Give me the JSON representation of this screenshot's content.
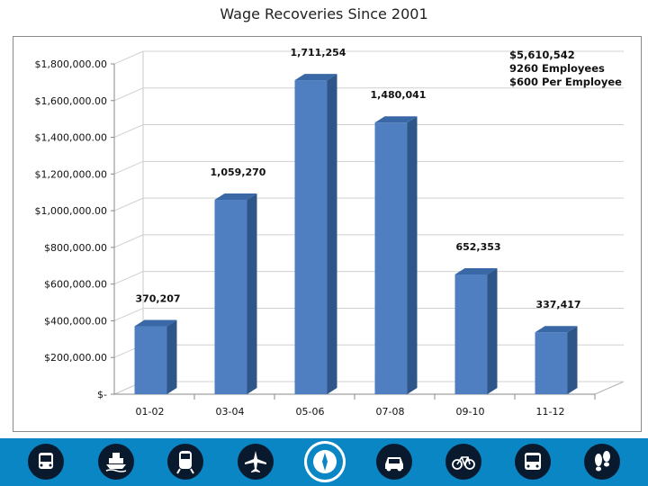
{
  "title": "Wage Recoveries Since 2001",
  "annotation": {
    "line1": "$5,610,542",
    "line2": "9260 Employees",
    "line3": "$600 Per Employee"
  },
  "chart_data": {
    "type": "bar",
    "title": "Wage Recoveries Since 2001",
    "categories": [
      "01-02",
      "03-04",
      "05-06",
      "07-08",
      "09-10",
      "11-12"
    ],
    "values": [
      370207,
      1059270,
      1711254,
      1480041,
      652353,
      337417
    ],
    "data_labels": [
      "370,207",
      "1,059,270",
      "1,711,254",
      "1,480,041",
      "652,353",
      "337,417"
    ],
    "ylim": [
      0,
      1800000
    ],
    "yticks": [
      0,
      200000,
      400000,
      600000,
      800000,
      1000000,
      1200000,
      1400000,
      1600000,
      1800000
    ],
    "ytick_labels": [
      "$-",
      "$200,000.00",
      "$400,000.00",
      "$600,000.00",
      "$800,000.00",
      "$1,000,000.00",
      "$1,200,000.00",
      "$1,400,000.00",
      "$1,600,000.00",
      "$1,800,000.00"
    ],
    "xlabel": "",
    "ylabel": "",
    "colors": {
      "bar_front": "#4f7fc1",
      "bar_side": "#2f5689",
      "bar_top": "#3a68a6",
      "grid": "#d0d0d0"
    }
  },
  "footer": {
    "background": "#0a86c4",
    "icons": [
      "bus-icon",
      "ferry-icon",
      "train-icon",
      "airplane-icon",
      "department-seal-icon",
      "car-icon",
      "bicycle-icon",
      "bus-icon",
      "footprints-icon"
    ]
  }
}
